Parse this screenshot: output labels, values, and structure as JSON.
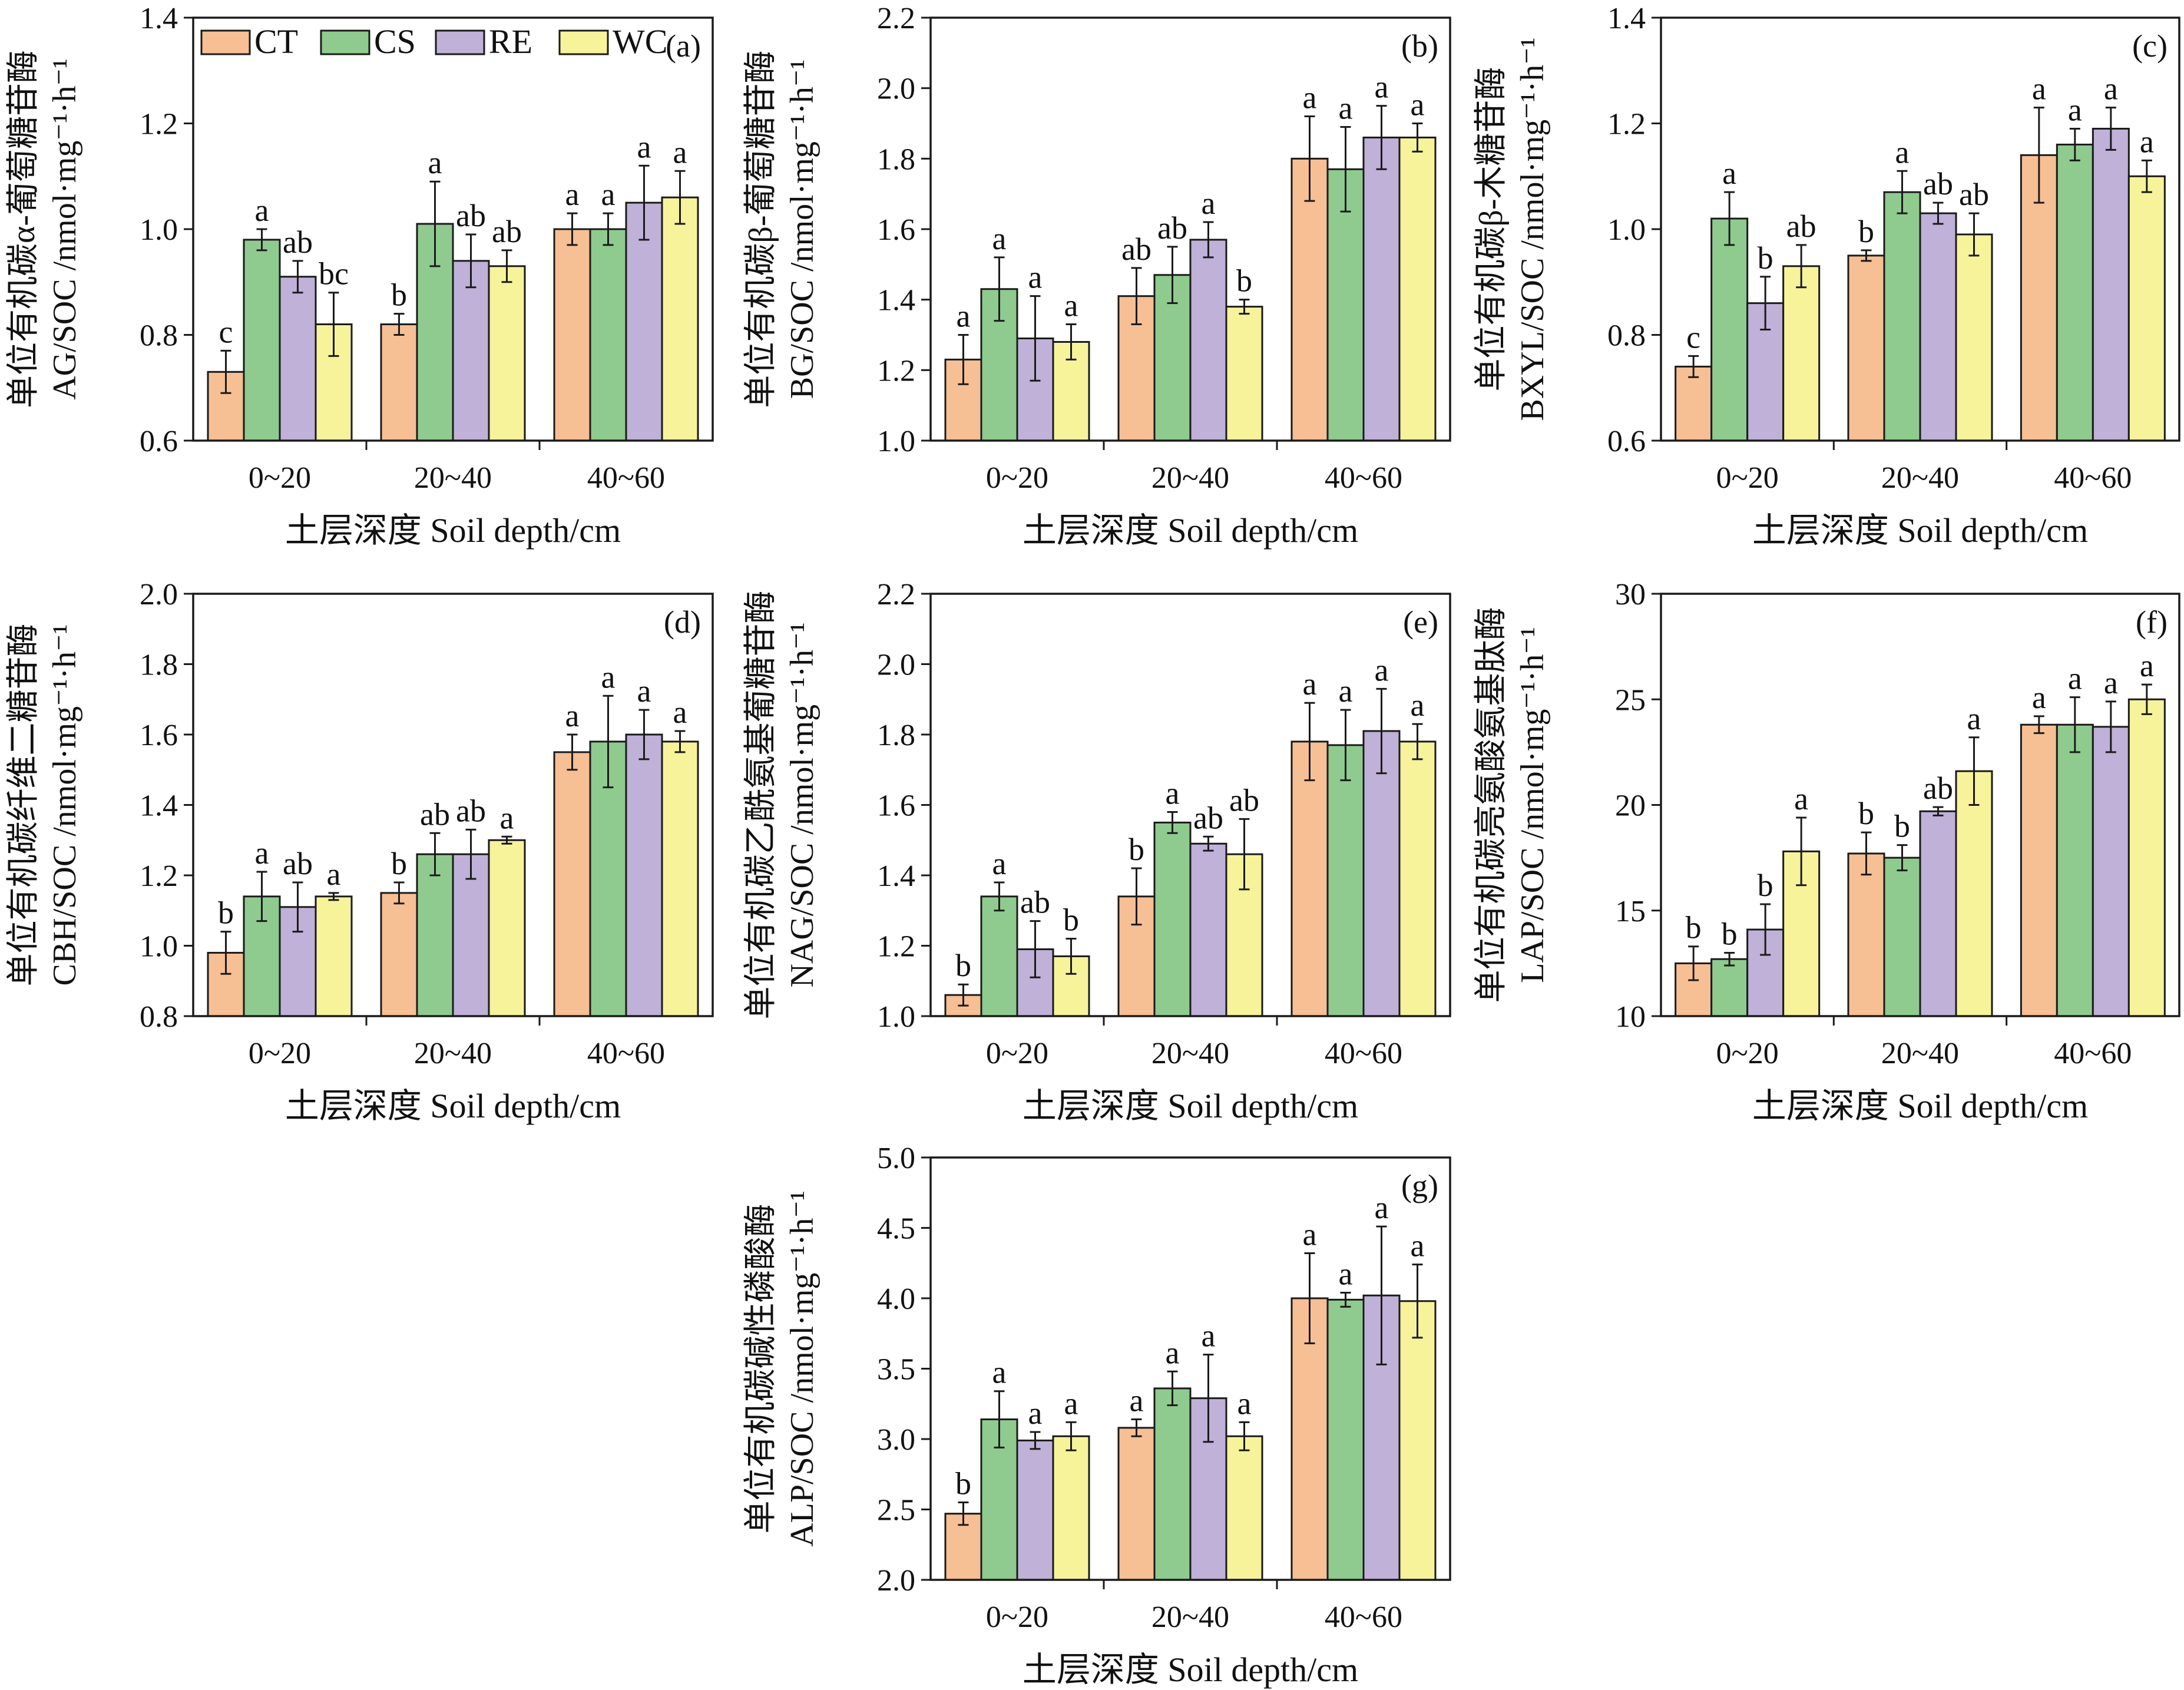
{
  "chart_data": [
    {
      "type": "bar",
      "panel": "(a)",
      "ylabel_line1": "单位有机碳α-葡萄糖苷酶",
      "ylabel_line2": "AG/SOC /nmol·mg⁻¹·h⁻¹",
      "xlabel": "土层深度 Soil depth/cm",
      "categories": [
        "0~20",
        "20~40",
        "40~60"
      ],
      "ylim": [
        0.6,
        1.4
      ],
      "yticks": [
        "0.6",
        "0.8",
        "1.0",
        "1.2",
        "1.4"
      ],
      "series": [
        {
          "name": "CT",
          "values": [
            0.73,
            0.82,
            1.0
          ],
          "errors": [
            0.04,
            0.02,
            0.03
          ],
          "labels": [
            "c",
            "b",
            "a"
          ]
        },
        {
          "name": "CS",
          "values": [
            0.98,
            1.01,
            1.0
          ],
          "errors": [
            0.02,
            0.08,
            0.03
          ],
          "labels": [
            "a",
            "a",
            "a"
          ]
        },
        {
          "name": "RE",
          "values": [
            0.91,
            0.94,
            1.05
          ],
          "errors": [
            0.03,
            0.05,
            0.07
          ],
          "labels": [
            "ab",
            "ab",
            "a"
          ]
        },
        {
          "name": "WC",
          "values": [
            0.82,
            0.93,
            1.06
          ],
          "errors": [
            0.06,
            0.03,
            0.05
          ],
          "labels": [
            "bc",
            "ab",
            "a"
          ]
        }
      ]
    },
    {
      "type": "bar",
      "panel": "(b)",
      "ylabel_line1": "单位有机碳β-葡萄糖苷酶",
      "ylabel_line2": "BG/SOC /nmol·mg⁻¹·h⁻¹",
      "xlabel": "土层深度 Soil depth/cm",
      "categories": [
        "0~20",
        "20~40",
        "40~60"
      ],
      "ylim": [
        1.0,
        2.2
      ],
      "yticks": [
        "1.0",
        "1.2",
        "1.4",
        "1.6",
        "1.8",
        "2.0",
        "2.2"
      ],
      "series": [
        {
          "name": "CT",
          "values": [
            1.23,
            1.41,
            1.8
          ],
          "errors": [
            0.07,
            0.08,
            0.12
          ],
          "labels": [
            "a",
            "ab",
            "a"
          ]
        },
        {
          "name": "CS",
          "values": [
            1.43,
            1.47,
            1.77
          ],
          "errors": [
            0.09,
            0.08,
            0.12
          ],
          "labels": [
            "a",
            "ab",
            "a"
          ]
        },
        {
          "name": "RE",
          "values": [
            1.29,
            1.57,
            1.86
          ],
          "errors": [
            0.12,
            0.05,
            0.09
          ],
          "labels": [
            "a",
            "a",
            "a"
          ]
        },
        {
          "name": "WC",
          "values": [
            1.28,
            1.38,
            1.86
          ],
          "errors": [
            0.05,
            0.02,
            0.04
          ],
          "labels": [
            "a",
            "b",
            "a"
          ]
        }
      ]
    },
    {
      "type": "bar",
      "panel": "(c)",
      "ylabel_line1": "单位有机碳β-木糖苷酶",
      "ylabel_line2": "BXYL/SOC /nmol·mg⁻¹·h⁻¹",
      "xlabel": "土层深度 Soil depth/cm",
      "categories": [
        "0~20",
        "20~40",
        "40~60"
      ],
      "ylim": [
        0.6,
        1.4
      ],
      "yticks": [
        "0.6",
        "0.8",
        "1.0",
        "1.2",
        "1.4"
      ],
      "series": [
        {
          "name": "CT",
          "values": [
            0.74,
            0.95,
            1.14
          ],
          "errors": [
            0.02,
            0.01,
            0.09
          ],
          "labels": [
            "c",
            "b",
            "a"
          ]
        },
        {
          "name": "CS",
          "values": [
            1.02,
            1.07,
            1.16
          ],
          "errors": [
            0.05,
            0.04,
            0.03
          ],
          "labels": [
            "a",
            "a",
            "a"
          ]
        },
        {
          "name": "RE",
          "values": [
            0.86,
            1.03,
            1.19
          ],
          "errors": [
            0.05,
            0.02,
            0.04
          ],
          "labels": [
            "b",
            "ab",
            "a"
          ]
        },
        {
          "name": "WC",
          "values": [
            0.93,
            0.99,
            1.1
          ],
          "errors": [
            0.04,
            0.04,
            0.03
          ],
          "labels": [
            "ab",
            "ab",
            "a"
          ]
        }
      ]
    },
    {
      "type": "bar",
      "panel": "(d)",
      "ylabel_line1": "单位有机碳纤维二糖苷酶",
      "ylabel_line2": "CBH/SOC /nmol·mg⁻¹·h⁻¹",
      "xlabel": "土层深度 Soil depth/cm",
      "categories": [
        "0~20",
        "20~40",
        "40~60"
      ],
      "ylim": [
        0.8,
        2.0
      ],
      "yticks": [
        "0.8",
        "1.0",
        "1.2",
        "1.4",
        "1.6",
        "1.8",
        "2.0"
      ],
      "series": [
        {
          "name": "CT",
          "values": [
            0.98,
            1.15,
            1.55
          ],
          "errors": [
            0.06,
            0.03,
            0.05
          ],
          "labels": [
            "b",
            "b",
            "a"
          ]
        },
        {
          "name": "CS",
          "values": [
            1.14,
            1.26,
            1.58
          ],
          "errors": [
            0.07,
            0.06,
            0.13
          ],
          "labels": [
            "a",
            "ab",
            "a"
          ]
        },
        {
          "name": "RE",
          "values": [
            1.11,
            1.26,
            1.6
          ],
          "errors": [
            0.07,
            0.07,
            0.07
          ],
          "labels": [
            "ab",
            "ab",
            "a"
          ]
        },
        {
          "name": "WC",
          "values": [
            1.14,
            1.3,
            1.58
          ],
          "errors": [
            0.01,
            0.01,
            0.03
          ],
          "labels": [
            "a",
            "a",
            "a"
          ]
        }
      ]
    },
    {
      "type": "bar",
      "panel": "(e)",
      "ylabel_line1": "单位有机碳乙酰氨基葡糖苷酶",
      "ylabel_line2": "NAG/SOC /nmol·mg⁻¹·h⁻¹",
      "xlabel": "土层深度 Soil depth/cm",
      "categories": [
        "0~20",
        "20~40",
        "40~60"
      ],
      "ylim": [
        1.0,
        2.2
      ],
      "yticks": [
        "1.0",
        "1.2",
        "1.4",
        "1.6",
        "1.8",
        "2.0",
        "2.2"
      ],
      "series": [
        {
          "name": "CT",
          "values": [
            1.06,
            1.34,
            1.78
          ],
          "errors": [
            0.03,
            0.08,
            0.11
          ],
          "labels": [
            "b",
            "b",
            "a"
          ]
        },
        {
          "name": "CS",
          "values": [
            1.34,
            1.55,
            1.77
          ],
          "errors": [
            0.04,
            0.03,
            0.1
          ],
          "labels": [
            "a",
            "a",
            "a"
          ]
        },
        {
          "name": "RE",
          "values": [
            1.19,
            1.49,
            1.81
          ],
          "errors": [
            0.08,
            0.02,
            0.12
          ],
          "labels": [
            "ab",
            "ab",
            "a"
          ]
        },
        {
          "name": "WC",
          "values": [
            1.17,
            1.46,
            1.78
          ],
          "errors": [
            0.05,
            0.1,
            0.05
          ],
          "labels": [
            "b",
            "ab",
            "a"
          ]
        }
      ]
    },
    {
      "type": "bar",
      "panel": "(f)",
      "ylabel_line1": "单位有机碳亮氨酸氨基肽酶",
      "ylabel_line2": "LAP/SOC /nmol·mg⁻¹·h⁻¹",
      "xlabel": "土层深度 Soil depth/cm",
      "categories": [
        "0~20",
        "20~40",
        "40~60"
      ],
      "ylim": [
        10,
        30
      ],
      "yticks": [
        "10",
        "15",
        "20",
        "25",
        "30"
      ],
      "series": [
        {
          "name": "CT",
          "values": [
            12.5,
            17.7,
            23.8
          ],
          "errors": [
            0.8,
            1.0,
            0.4
          ],
          "labels": [
            "b",
            "b",
            "a"
          ]
        },
        {
          "name": "CS",
          "values": [
            12.7,
            17.5,
            23.8
          ],
          "errors": [
            0.3,
            0.6,
            1.3
          ],
          "labels": [
            "b",
            "b",
            "a"
          ]
        },
        {
          "name": "RE",
          "values": [
            14.1,
            19.7,
            23.7
          ],
          "errors": [
            1.2,
            0.2,
            1.2
          ],
          "labels": [
            "b",
            "ab",
            "a"
          ]
        },
        {
          "name": "WC",
          "values": [
            17.8,
            21.6,
            25.0
          ],
          "errors": [
            1.6,
            1.6,
            0.7
          ],
          "labels": [
            "a",
            "a",
            "a"
          ]
        }
      ]
    },
    {
      "type": "bar",
      "panel": "(g)",
      "ylabel_line1": "单位有机碳碱性磷酸酶",
      "ylabel_line2": "ALP/SOC /nmol·mg⁻¹·h⁻¹",
      "xlabel": "土层深度 Soil depth/cm",
      "categories": [
        "0~20",
        "20~40",
        "40~60"
      ],
      "ylim": [
        2.0,
        5.0
      ],
      "yticks": [
        "2.0",
        "2.5",
        "3.0",
        "3.5",
        "4.0",
        "4.5",
        "5.0"
      ],
      "series": [
        {
          "name": "CT",
          "values": [
            2.47,
            3.08,
            4.0
          ],
          "errors": [
            0.08,
            0.06,
            0.32
          ],
          "labels": [
            "b",
            "a",
            "a"
          ]
        },
        {
          "name": "CS",
          "values": [
            3.14,
            3.36,
            3.99
          ],
          "errors": [
            0.2,
            0.12,
            0.05
          ],
          "labels": [
            "a",
            "a",
            "a"
          ]
        },
        {
          "name": "RE",
          "values": [
            2.99,
            3.29,
            4.02
          ],
          "errors": [
            0.06,
            0.31,
            0.49
          ],
          "labels": [
            "a",
            "a",
            "a"
          ]
        },
        {
          "name": "WC",
          "values": [
            3.02,
            3.02,
            3.98
          ],
          "errors": [
            0.1,
            0.1,
            0.26
          ],
          "labels": [
            "a",
            "a",
            "a"
          ]
        }
      ]
    }
  ],
  "legend": [
    {
      "name": "CT",
      "color": "#f6bf94"
    },
    {
      "name": "CS",
      "color": "#8fcb8e"
    },
    {
      "name": "RE",
      "color": "#bfb1d8"
    },
    {
      "name": "WC",
      "color": "#f6f39b"
    }
  ]
}
